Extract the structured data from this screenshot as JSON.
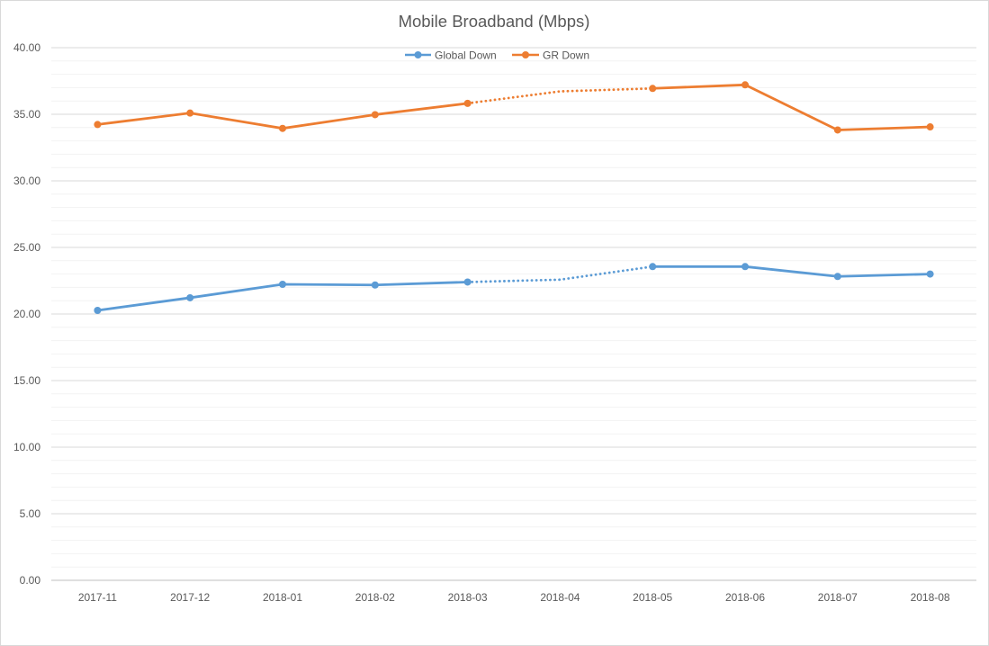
{
  "chart_data": {
    "type": "line",
    "title": "Mobile Broadband (Mbps)",
    "xlabel": "",
    "ylabel": "",
    "categories": [
      "2017-11",
      "2017-12",
      "2018-01",
      "2018-02",
      "2018-03",
      "2018-04",
      "2018-05",
      "2018-06",
      "2018-07",
      "2018-08"
    ],
    "ylim": [
      0,
      40
    ],
    "y_tick_labels": [
      "0.00",
      "5.00",
      "10.00",
      "15.00",
      "20.00",
      "25.00",
      "30.00",
      "35.00",
      "40.00"
    ],
    "grid": true,
    "legend_position": "top",
    "series": [
      {
        "name": "Global Down",
        "color": "#5b9bd5",
        "values": [
          20.27,
          21.22,
          22.23,
          22.18,
          22.4,
          null,
          23.56,
          23.56,
          22.82,
          23.0
        ],
        "gap_interpolated": [
          22.4,
          22.58,
          23.56
        ],
        "gap_style": "dotted"
      },
      {
        "name": "GR Down",
        "color": "#ed7d31",
        "values": [
          34.23,
          35.09,
          33.94,
          34.97,
          35.82,
          null,
          36.94,
          37.21,
          33.82,
          34.05
        ],
        "gap_interpolated": [
          35.82,
          36.72,
          36.94
        ],
        "gap_style": "dotted"
      }
    ]
  }
}
